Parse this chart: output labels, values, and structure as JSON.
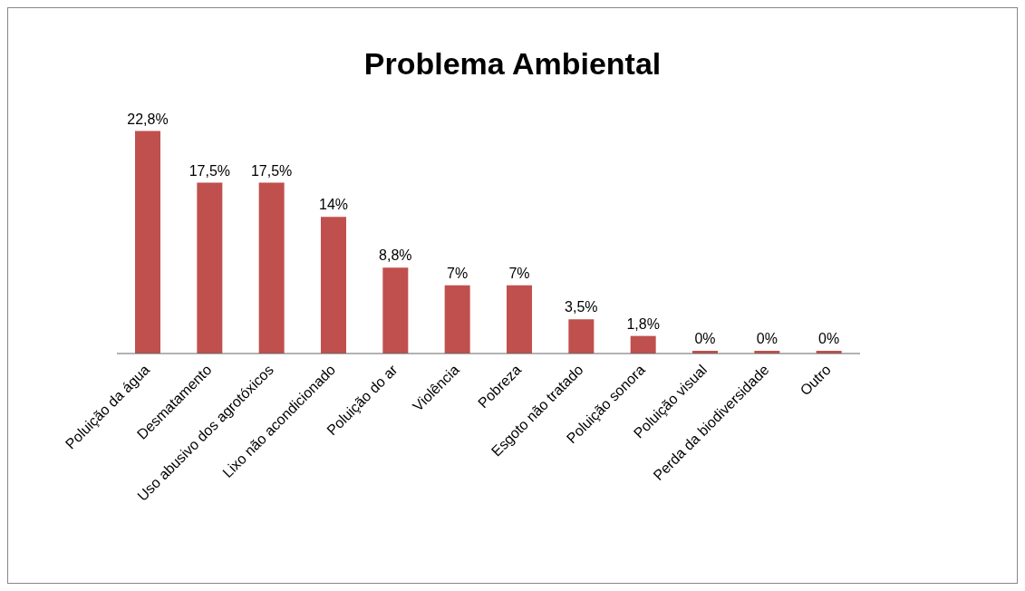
{
  "chart_data": {
    "type": "bar",
    "title": "Problema Ambiental",
    "categories": [
      "Poluição da água",
      "Desmatamento",
      "Uso abusivo dos agrotóxicos",
      "Lixo não acondicionado",
      "Poluição do ar",
      "Violência",
      "Pobreza",
      "Esgoto não tratado",
      "Poluição sonora",
      "Poluição visual",
      "Perda da biodiversidade",
      "Outro"
    ],
    "values": [
      22.8,
      17.5,
      17.5,
      14,
      8.8,
      7,
      7,
      3.5,
      1.8,
      0,
      0,
      0
    ],
    "value_labels": [
      "22,8%",
      "17,5%",
      "17,5%",
      "14%",
      "8,8%",
      "7%",
      "7%",
      "3,5%",
      "1,8%",
      "0%",
      "0%",
      "0%"
    ],
    "color": "#c0504d"
  }
}
